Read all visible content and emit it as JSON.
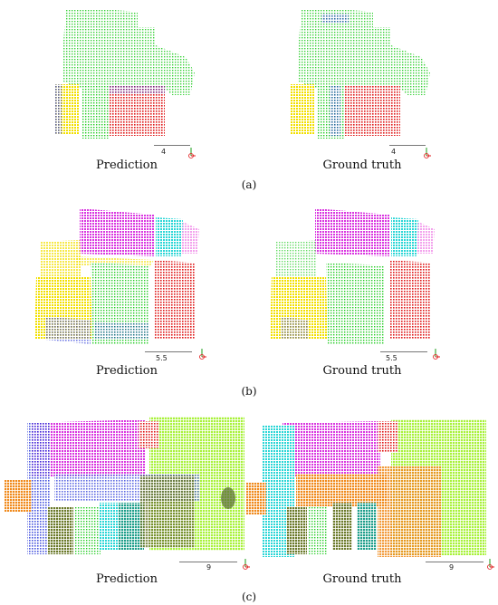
{
  "figure": {
    "rows": [
      {
        "id": "a",
        "sublabel": "(a)",
        "left": {
          "caption": "Prediction",
          "scale": "4"
        },
        "right": {
          "caption": "Ground truth",
          "scale": "4"
        }
      },
      {
        "id": "b",
        "sublabel": "(b)",
        "left": {
          "caption": "Prediction",
          "scale": "5.5"
        },
        "right": {
          "caption": "Ground truth",
          "scale": "5.5"
        }
      },
      {
        "id": "c",
        "sublabel": "(c)",
        "left": {
          "caption": "Prediction",
          "scale": "9"
        },
        "right": {
          "caption": "Ground truth",
          "scale": "9"
        }
      }
    ],
    "colors": {
      "green": "#22cc22",
      "red": "#e01818",
      "yellow": "#f2e000",
      "blue": "#1a2bd6",
      "magenta": "#d935e0",
      "cyan": "#2ad6d6",
      "pink": "#f08ce8",
      "orange": "#f08a1c",
      "lime": "#a8f23a",
      "olive": "#6b7a2a",
      "teal": "#1e9e8a"
    }
  }
}
